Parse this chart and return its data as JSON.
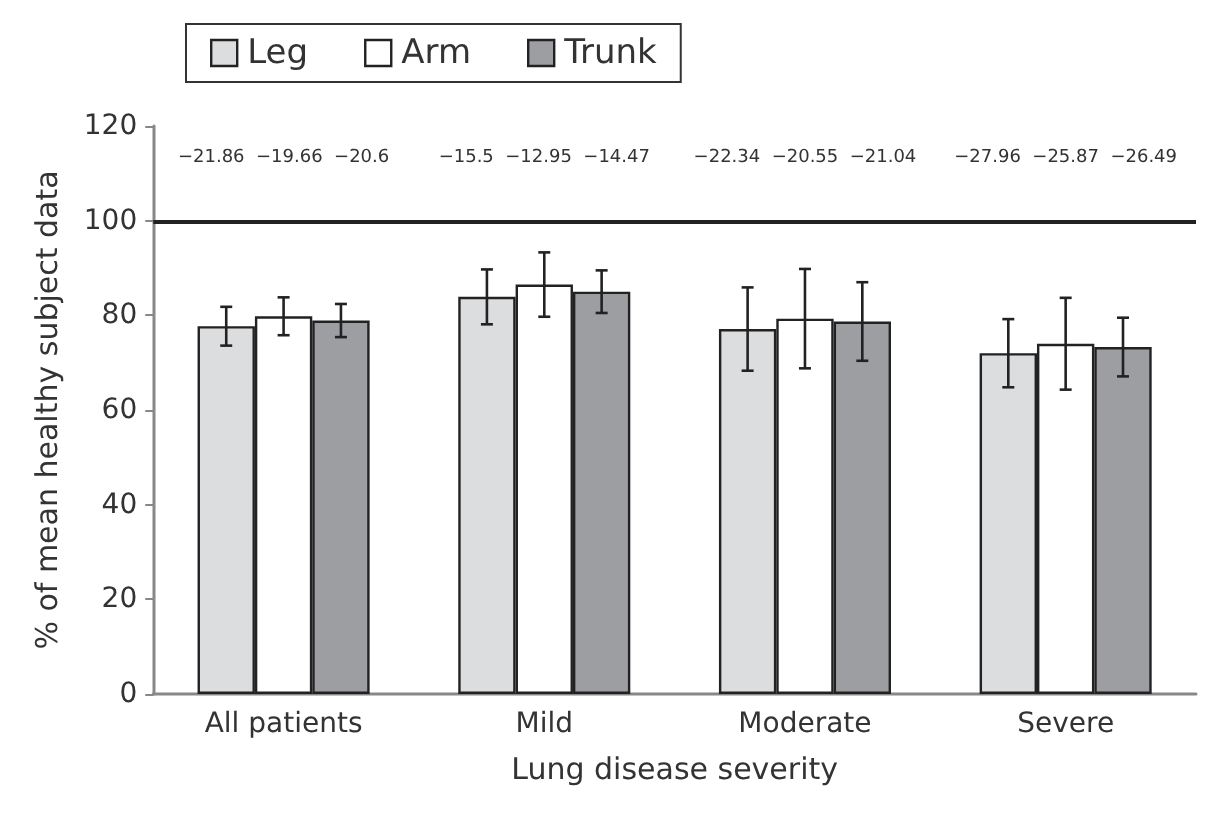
{
  "chart_data": {
    "type": "bar",
    "xlabel": "Lung disease severity",
    "ylabel": "% of mean healthy subject data",
    "categories": [
      "All patients",
      "Mild",
      "Moderate",
      "Severe"
    ],
    "series": [
      {
        "name": "Leg",
        "color": "#dcdddf",
        "values": [
          77.7,
          83.9,
          77.1,
          72
        ],
        "errors": [
          4.1,
          5.8,
          8.8,
          7.2
        ]
      },
      {
        "name": "Arm",
        "color": "#ffffff",
        "values": [
          79.8,
          86.5,
          79.3,
          74
        ],
        "errors": [
          4,
          6.8,
          10.5,
          9.7
        ]
      },
      {
        "name": "Trunk",
        "color": "#9d9ea2",
        "values": [
          78.9,
          85,
          78.7,
          73.3
        ],
        "errors": [
          3.5,
          4.5,
          8.3,
          6.2
        ]
      }
    ],
    "ylim": [
      0,
      120
    ],
    "yticks": [
      0,
      20,
      40,
      60,
      80,
      100,
      120
    ],
    "ref_lines": [
      {
        "axis": "y",
        "value": 100,
        "color": "#222222"
      }
    ],
    "annotations": [
      "−21.86  −19.66  −20.6",
      "−15.5  −12.95  −14.47",
      "−22.34  −20.55  −21.04",
      "−27.96  −25.87  −26.49"
    ],
    "grid": false,
    "legend": "top left"
  }
}
